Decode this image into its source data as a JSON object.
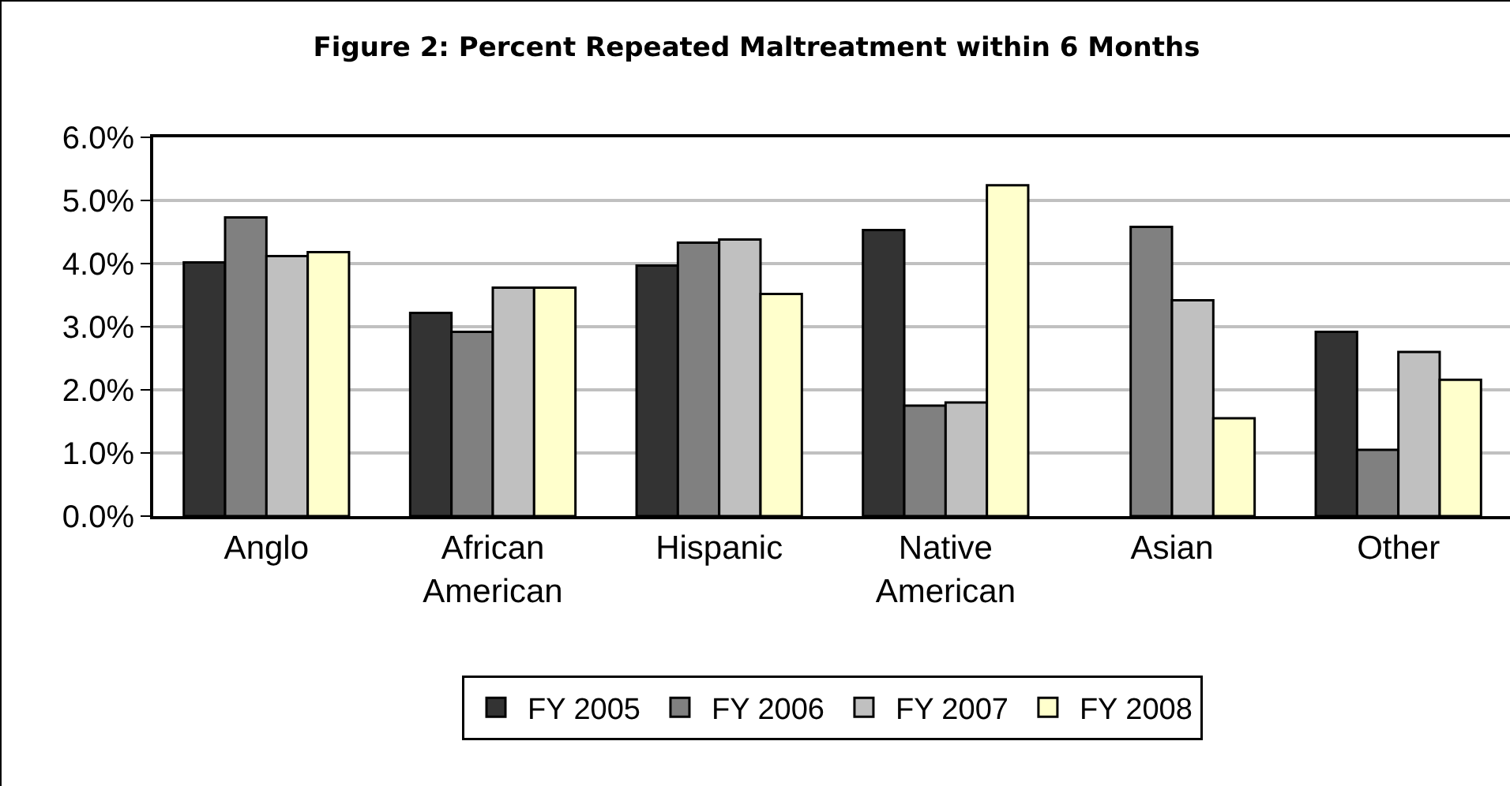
{
  "chart_data": {
    "type": "bar",
    "title": "Figure 2: Percent Repeated Maltreatment within 6 Months",
    "categories": [
      "Anglo",
      "African American",
      "Hispanic",
      "Native American",
      "Asian",
      "Other"
    ],
    "series": [
      {
        "name": "FY 2005",
        "color": "#333333",
        "values": [
          4.02,
          3.22,
          3.97,
          4.53,
          null,
          2.92
        ]
      },
      {
        "name": "FY 2006",
        "color": "#808080",
        "values": [
          4.73,
          2.92,
          4.33,
          1.75,
          4.58,
          1.05
        ]
      },
      {
        "name": "FY 2007",
        "color": "#c0c0c0",
        "values": [
          4.12,
          3.62,
          4.38,
          1.8,
          3.42,
          2.6
        ]
      },
      {
        "name": "FY 2008",
        "color": "#ffffcc",
        "values": [
          4.18,
          3.62,
          3.52,
          5.24,
          1.55,
          2.16
        ]
      }
    ],
    "ylim": [
      0,
      6
    ],
    "yticks": [
      {
        "value": 0,
        "label": "0.0%"
      },
      {
        "value": 1,
        "label": "1.0%"
      },
      {
        "value": 2,
        "label": "2.0%"
      },
      {
        "value": 3,
        "label": "3.0%"
      },
      {
        "value": 4,
        "label": "4.0%"
      },
      {
        "value": 5,
        "label": "5.0%"
      },
      {
        "value": 6,
        "label": "6.0%"
      }
    ],
    "grid": "y",
    "legend": "bottom"
  }
}
